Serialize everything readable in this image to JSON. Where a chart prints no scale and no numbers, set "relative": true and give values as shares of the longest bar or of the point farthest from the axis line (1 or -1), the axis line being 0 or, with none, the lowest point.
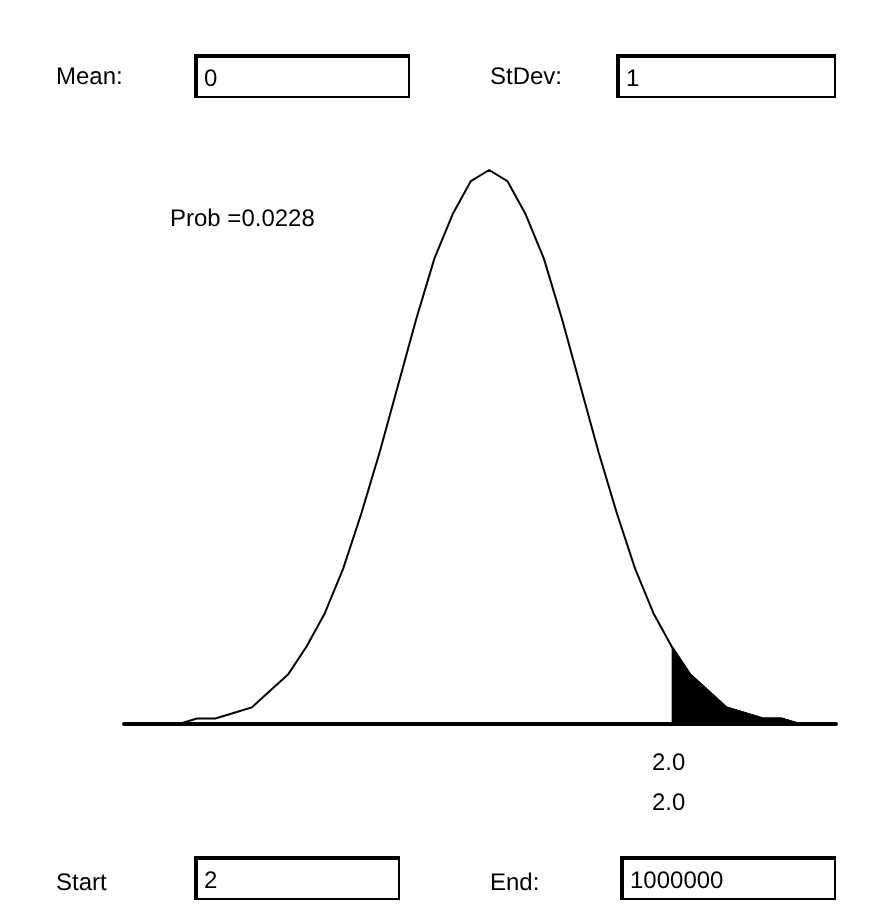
{
  "chart_data": {
    "type": "line",
    "relative": true,
    "categories": [
      null,
      null,
      null,
      null,
      null,
      null,
      null,
      null,
      null,
      null,
      null,
      null,
      null,
      null,
      null,
      null,
      null,
      null,
      null,
      null,
      null,
      null,
      null,
      null,
      null,
      null,
      null,
      null,
      null,
      null,
      null,
      null,
      null,
      null,
      null,
      null,
      null,
      null,
      null,
      null
    ],
    "series": [
      {
        "color": "#000000",
        "values": [
          0,
          0,
          0,
          0,
          0.01,
          0.01,
          0.02,
          0.03,
          0.06,
          0.09,
          0.14,
          0.2,
          0.28,
          0.38,
          0.49,
          0.61,
          0.73,
          0.84,
          0.92,
          0.98,
          1,
          0.98,
          0.92,
          0.84,
          0.73,
          0.61,
          0.49,
          0.38,
          0.28,
          0.2,
          0.14,
          0.09,
          0.06,
          0.03,
          0.02,
          0.01,
          0.01,
          0,
          0,
          0
        ]
      },
      {
        "type": "area",
        "color": "#000000",
        "values": [
          null,
          null,
          null,
          null,
          null,
          null,
          null,
          null,
          null,
          null,
          null,
          null,
          null,
          null,
          null,
          null,
          null,
          null,
          null,
          null,
          null,
          null,
          null,
          null,
          null,
          null,
          null,
          null,
          null,
          null,
          0.14,
          0.09,
          0.06,
          0.03,
          0.02,
          0.01,
          0.01,
          0,
          0,
          0
        ]
      }
    ],
    "annotations": [
      "Mean:",
      "0",
      "StDev:",
      "1",
      "Prob =0.0228",
      "2.0",
      "2.0",
      "Start",
      "2",
      "End:",
      "1000000"
    ]
  }
}
